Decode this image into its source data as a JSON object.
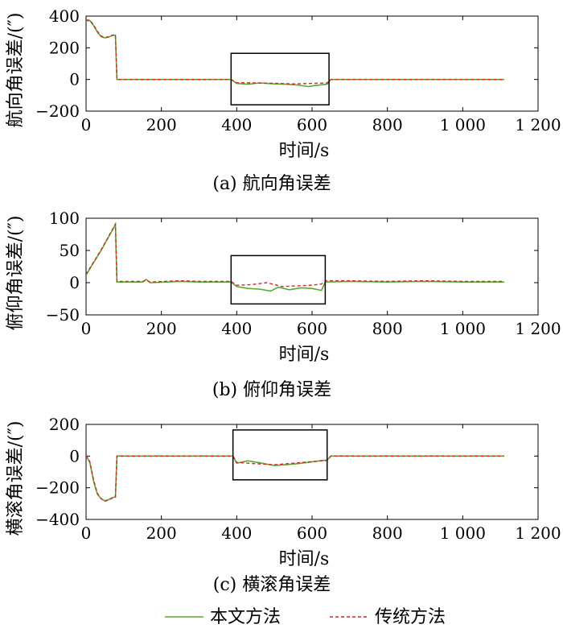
{
  "legend": {
    "items": [
      {
        "label": "本文方法",
        "color": "#5aa832",
        "dash": "solid"
      },
      {
        "label": "传统方法",
        "color": "#d62728",
        "dash": "dashed"
      }
    ]
  },
  "chart_data": [
    {
      "type": "line",
      "caption": "(a) 航向角误差",
      "xlabel": "时间/s",
      "ylabel": "航向角误差/(″)",
      "xlim": [
        0,
        1200
      ],
      "ylim": [
        -200,
        400
      ],
      "xticks": [
        0,
        200,
        400,
        600,
        800,
        1000,
        1200
      ],
      "xtick_labels": [
        "0",
        "200",
        "400",
        "600",
        "800",
        "1 000",
        "1 200"
      ],
      "yticks": [
        -200,
        0,
        200,
        400
      ],
      "ytick_labels": [
        "−200",
        "0",
        "200",
        "400"
      ],
      "zoom_box": {
        "x": [
          385,
          645
        ],
        "y": [
          -160,
          165
        ]
      },
      "series": [
        {
          "name": "本文方法",
          "x": [
            0,
            10,
            20,
            30,
            40,
            50,
            60,
            70,
            78,
            82,
            150,
            300,
            385,
            400,
            430,
            460,
            500,
            530,
            560,
            590,
            610,
            640,
            650,
            800,
            1000,
            1110
          ],
          "y": [
            370,
            372,
            340,
            300,
            270,
            262,
            268,
            278,
            280,
            0,
            0,
            0,
            0,
            -25,
            -30,
            -22,
            -28,
            -30,
            -35,
            -45,
            -38,
            -30,
            0,
            0,
            0,
            0
          ]
        },
        {
          "name": "传统方法",
          "x": [
            0,
            10,
            20,
            30,
            40,
            50,
            60,
            70,
            78,
            82,
            150,
            300,
            385,
            400,
            450,
            500,
            550,
            600,
            640,
            650,
            800,
            1000,
            1110
          ],
          "y": [
            375,
            375,
            345,
            305,
            275,
            265,
            270,
            280,
            283,
            0,
            0,
            0,
            0,
            -20,
            -22,
            -24,
            -28,
            -25,
            -22,
            0,
            0,
            0,
            0
          ]
        }
      ]
    },
    {
      "type": "line",
      "caption": "(b) 俯仰角误差",
      "xlabel": "时间/s",
      "ylabel": "俯仰角误差/(″)",
      "xlim": [
        0,
        1200
      ],
      "ylim": [
        -50,
        100
      ],
      "xticks": [
        0,
        200,
        400,
        600,
        800,
        1000,
        1200
      ],
      "xtick_labels": [
        "0",
        "200",
        "400",
        "600",
        "800",
        "1 000",
        "1 200"
      ],
      "yticks": [
        -50,
        0,
        50,
        100
      ],
      "ytick_labels": [
        "−50",
        "0",
        "50",
        "100"
      ],
      "zoom_box": {
        "x": [
          385,
          635
        ],
        "y": [
          -33,
          42
        ]
      },
      "series": [
        {
          "name": "本文方法",
          "x": [
            0,
            40,
            78,
            82,
            150,
            160,
            170,
            250,
            300,
            385,
            400,
            430,
            460,
            490,
            510,
            540,
            570,
            600,
            625,
            635,
            700,
            800,
            900,
            1000,
            1110
          ],
          "y": [
            12,
            50,
            90,
            1,
            1,
            5,
            0,
            2,
            1,
            1,
            -6,
            -9,
            -10,
            -13,
            -7,
            -11,
            -8,
            -9,
            -12,
            1,
            2,
            1,
            2,
            1,
            1
          ]
        },
        {
          "name": "传统方法",
          "x": [
            0,
            40,
            78,
            82,
            150,
            160,
            170,
            250,
            300,
            385,
            400,
            440,
            480,
            520,
            560,
            600,
            625,
            635,
            700,
            800,
            900,
            1000,
            1110
          ],
          "y": [
            13,
            51,
            91,
            2,
            2,
            4,
            1,
            3,
            2,
            2,
            -4,
            -3,
            0,
            -6,
            -5,
            -4,
            -2,
            3,
            3,
            2,
            3,
            2,
            2
          ]
        }
      ]
    },
    {
      "type": "line",
      "caption": "(c) 横滚角误差",
      "xlabel": "时间/s",
      "ylabel": "横滚角误差/(″)",
      "xlim": [
        0,
        1200
      ],
      "ylim": [
        -400,
        200
      ],
      "xticks": [
        0,
        200,
        400,
        600,
        800,
        1000,
        1200
      ],
      "xtick_labels": [
        "0",
        "200",
        "400",
        "600",
        "800",
        "1 000",
        "1 200"
      ],
      "yticks": [
        -400,
        -200,
        0,
        200
      ],
      "ytick_labels": [
        "−400",
        "−200",
        "0",
        "200"
      ],
      "zoom_box": {
        "x": [
          390,
          640
        ],
        "y": [
          -150,
          165
        ]
      },
      "series": [
        {
          "name": "本文方法",
          "x": [
            0,
            10,
            20,
            30,
            40,
            50,
            60,
            70,
            78,
            82,
            200,
            390,
            400,
            430,
            460,
            500,
            530,
            560,
            590,
            620,
            640,
            650,
            800,
            1000,
            1110
          ],
          "y": [
            0,
            -40,
            -160,
            -240,
            -270,
            -282,
            -275,
            -262,
            -258,
            0,
            0,
            0,
            -45,
            -30,
            -42,
            -60,
            -55,
            -48,
            -40,
            -30,
            -25,
            0,
            0,
            0,
            0
          ]
        },
        {
          "name": "传统方法",
          "x": [
            0,
            10,
            20,
            30,
            40,
            50,
            60,
            70,
            78,
            82,
            200,
            390,
            400,
            450,
            500,
            550,
            600,
            640,
            650,
            800,
            1000,
            1110
          ],
          "y": [
            5,
            -35,
            -150,
            -235,
            -268,
            -285,
            -278,
            -265,
            -260,
            0,
            0,
            0,
            -40,
            -48,
            -55,
            -45,
            -35,
            -28,
            0,
            0,
            0,
            0
          ]
        }
      ]
    }
  ]
}
